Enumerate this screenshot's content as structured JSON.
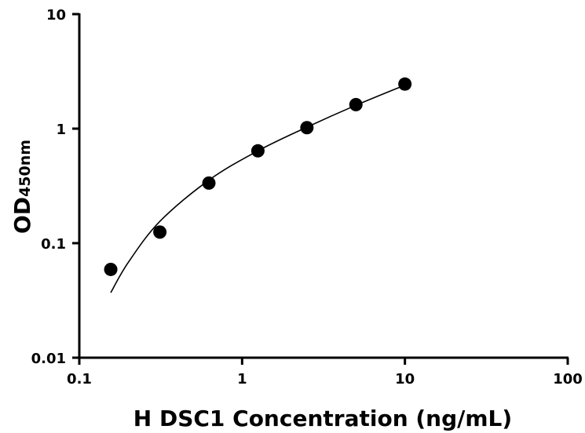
{
  "chart_data": {
    "type": "scatter",
    "title": "",
    "xlabel": "H DSC1 Concentration (ng/mL)",
    "ylabel_main": "OD",
    "ylabel_sub": "450nm",
    "x_scale": "log",
    "y_scale": "log",
    "xlim": [
      0.1,
      100
    ],
    "ylim": [
      0.01,
      10
    ],
    "x_ticks": [
      "0.1",
      "1",
      "10",
      "100"
    ],
    "y_ticks": [
      "0.01",
      "0.1",
      "1",
      "10"
    ],
    "grid": false,
    "legend": "none",
    "points": [
      {
        "x": 0.156,
        "y": 0.059
      },
      {
        "x": 0.3125,
        "y": 0.125
      },
      {
        "x": 0.625,
        "y": 0.335
      },
      {
        "x": 1.25,
        "y": 0.64
      },
      {
        "x": 2.5,
        "y": 1.02
      },
      {
        "x": 5,
        "y": 1.62
      },
      {
        "x": 10,
        "y": 2.45
      }
    ],
    "fit_curve": {
      "x_range": [
        0.156,
        10
      ],
      "points": [
        {
          "x": 0.156,
          "y": 0.037
        },
        {
          "x": 0.2,
          "y": 0.068
        },
        {
          "x": 0.3125,
          "y": 0.155
        },
        {
          "x": 0.625,
          "y": 0.355
        },
        {
          "x": 1.25,
          "y": 0.64
        },
        {
          "x": 2.5,
          "y": 1.03
        },
        {
          "x": 5,
          "y": 1.6
        },
        {
          "x": 10,
          "y": 2.4
        }
      ]
    },
    "colors": {
      "marker": "#000000",
      "line": "#000000",
      "axis": "#000000"
    }
  }
}
